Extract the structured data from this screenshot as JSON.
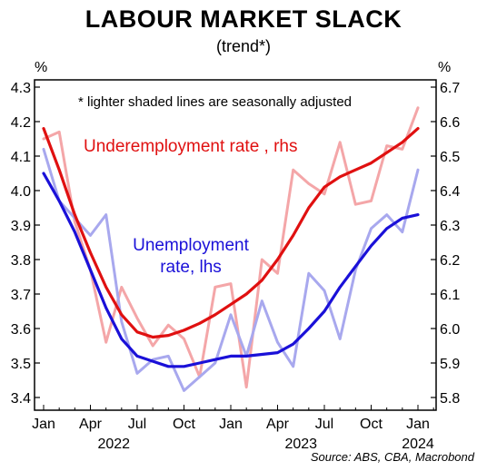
{
  "chart_data": {
    "type": "line",
    "title": "LABOUR MARKET SLACK",
    "subtitle": "(trend*)",
    "note": "*  lighter shaded lines are seasonally adjusted",
    "source": "Source: ABS, CBA, Macrobond",
    "left_unit": "%",
    "right_unit": "%",
    "x_tick_labels": [
      "Jan",
      "Apr",
      "Jul",
      "Oct",
      "Jan",
      "Apr",
      "Jul",
      "Oct",
      "Jan"
    ],
    "x_year_labels": [
      "2022",
      "2023",
      "2024"
    ],
    "left_axis": {
      "ylim": [
        3.4,
        4.3
      ],
      "ticks": [
        "3.4",
        "3.5",
        "3.6",
        "3.7",
        "3.8",
        "3.9",
        "4.0",
        "4.1",
        "4.2",
        "4.3"
      ]
    },
    "right_axis": {
      "ylim": [
        5.8,
        6.7
      ],
      "ticks": [
        "5.8",
        "5.9",
        "6.0",
        "6.1",
        "6.2",
        "6.3",
        "6.4",
        "6.5",
        "6.6",
        "6.7"
      ]
    },
    "months": [
      "2022-01",
      "2022-02",
      "2022-03",
      "2022-04",
      "2022-05",
      "2022-06",
      "2022-07",
      "2022-08",
      "2022-09",
      "2022-10",
      "2022-11",
      "2022-12",
      "2023-01",
      "2023-02",
      "2023-03",
      "2023-04",
      "2023-05",
      "2023-06",
      "2023-07",
      "2023-08",
      "2023-09",
      "2023-10",
      "2023-11",
      "2023-12",
      "2024-01"
    ],
    "series": [
      {
        "name": "Underemployment rate , rhs",
        "axis": "right",
        "kind": "trend",
        "color": "#e01010",
        "values": [
          6.58,
          6.46,
          6.33,
          6.22,
          6.12,
          6.04,
          5.99,
          5.975,
          5.98,
          5.995,
          6.015,
          6.04,
          6.07,
          6.1,
          6.14,
          6.2,
          6.27,
          6.35,
          6.41,
          6.44,
          6.46,
          6.48,
          6.51,
          6.54,
          6.58
        ]
      },
      {
        "name": "Underemployment rate SA",
        "axis": "right",
        "kind": "sa",
        "color": "#f4a6a8",
        "values": [
          6.55,
          6.57,
          6.31,
          6.17,
          5.96,
          6.12,
          6.03,
          5.95,
          6.01,
          5.97,
          5.86,
          6.12,
          6.13,
          5.83,
          6.2,
          6.16,
          6.46,
          6.42,
          6.39,
          6.54,
          6.36,
          6.37,
          6.53,
          6.52,
          6.64
        ]
      },
      {
        "name": "Unemployment rate, lhs",
        "axis": "left",
        "kind": "trend",
        "color": "#1a10d8",
        "values": [
          4.05,
          3.97,
          3.88,
          3.77,
          3.66,
          3.57,
          3.52,
          3.505,
          3.49,
          3.49,
          3.5,
          3.51,
          3.52,
          3.52,
          3.525,
          3.53,
          3.555,
          3.6,
          3.65,
          3.72,
          3.78,
          3.84,
          3.89,
          3.92,
          3.93
        ]
      },
      {
        "name": "Unemployment rate SA",
        "axis": "left",
        "kind": "sa",
        "color": "#a8a8ee",
        "values": [
          4.12,
          3.97,
          3.92,
          3.87,
          3.93,
          3.62,
          3.47,
          3.51,
          3.52,
          3.42,
          3.46,
          3.5,
          3.64,
          3.52,
          3.68,
          3.56,
          3.49,
          3.76,
          3.71,
          3.57,
          3.77,
          3.89,
          3.93,
          3.88,
          4.06
        ]
      }
    ],
    "labels": {
      "underemployment": "Underemployment rate , rhs",
      "unemployment_line1": "Unemployment",
      "unemployment_line2": "rate, lhs"
    }
  }
}
